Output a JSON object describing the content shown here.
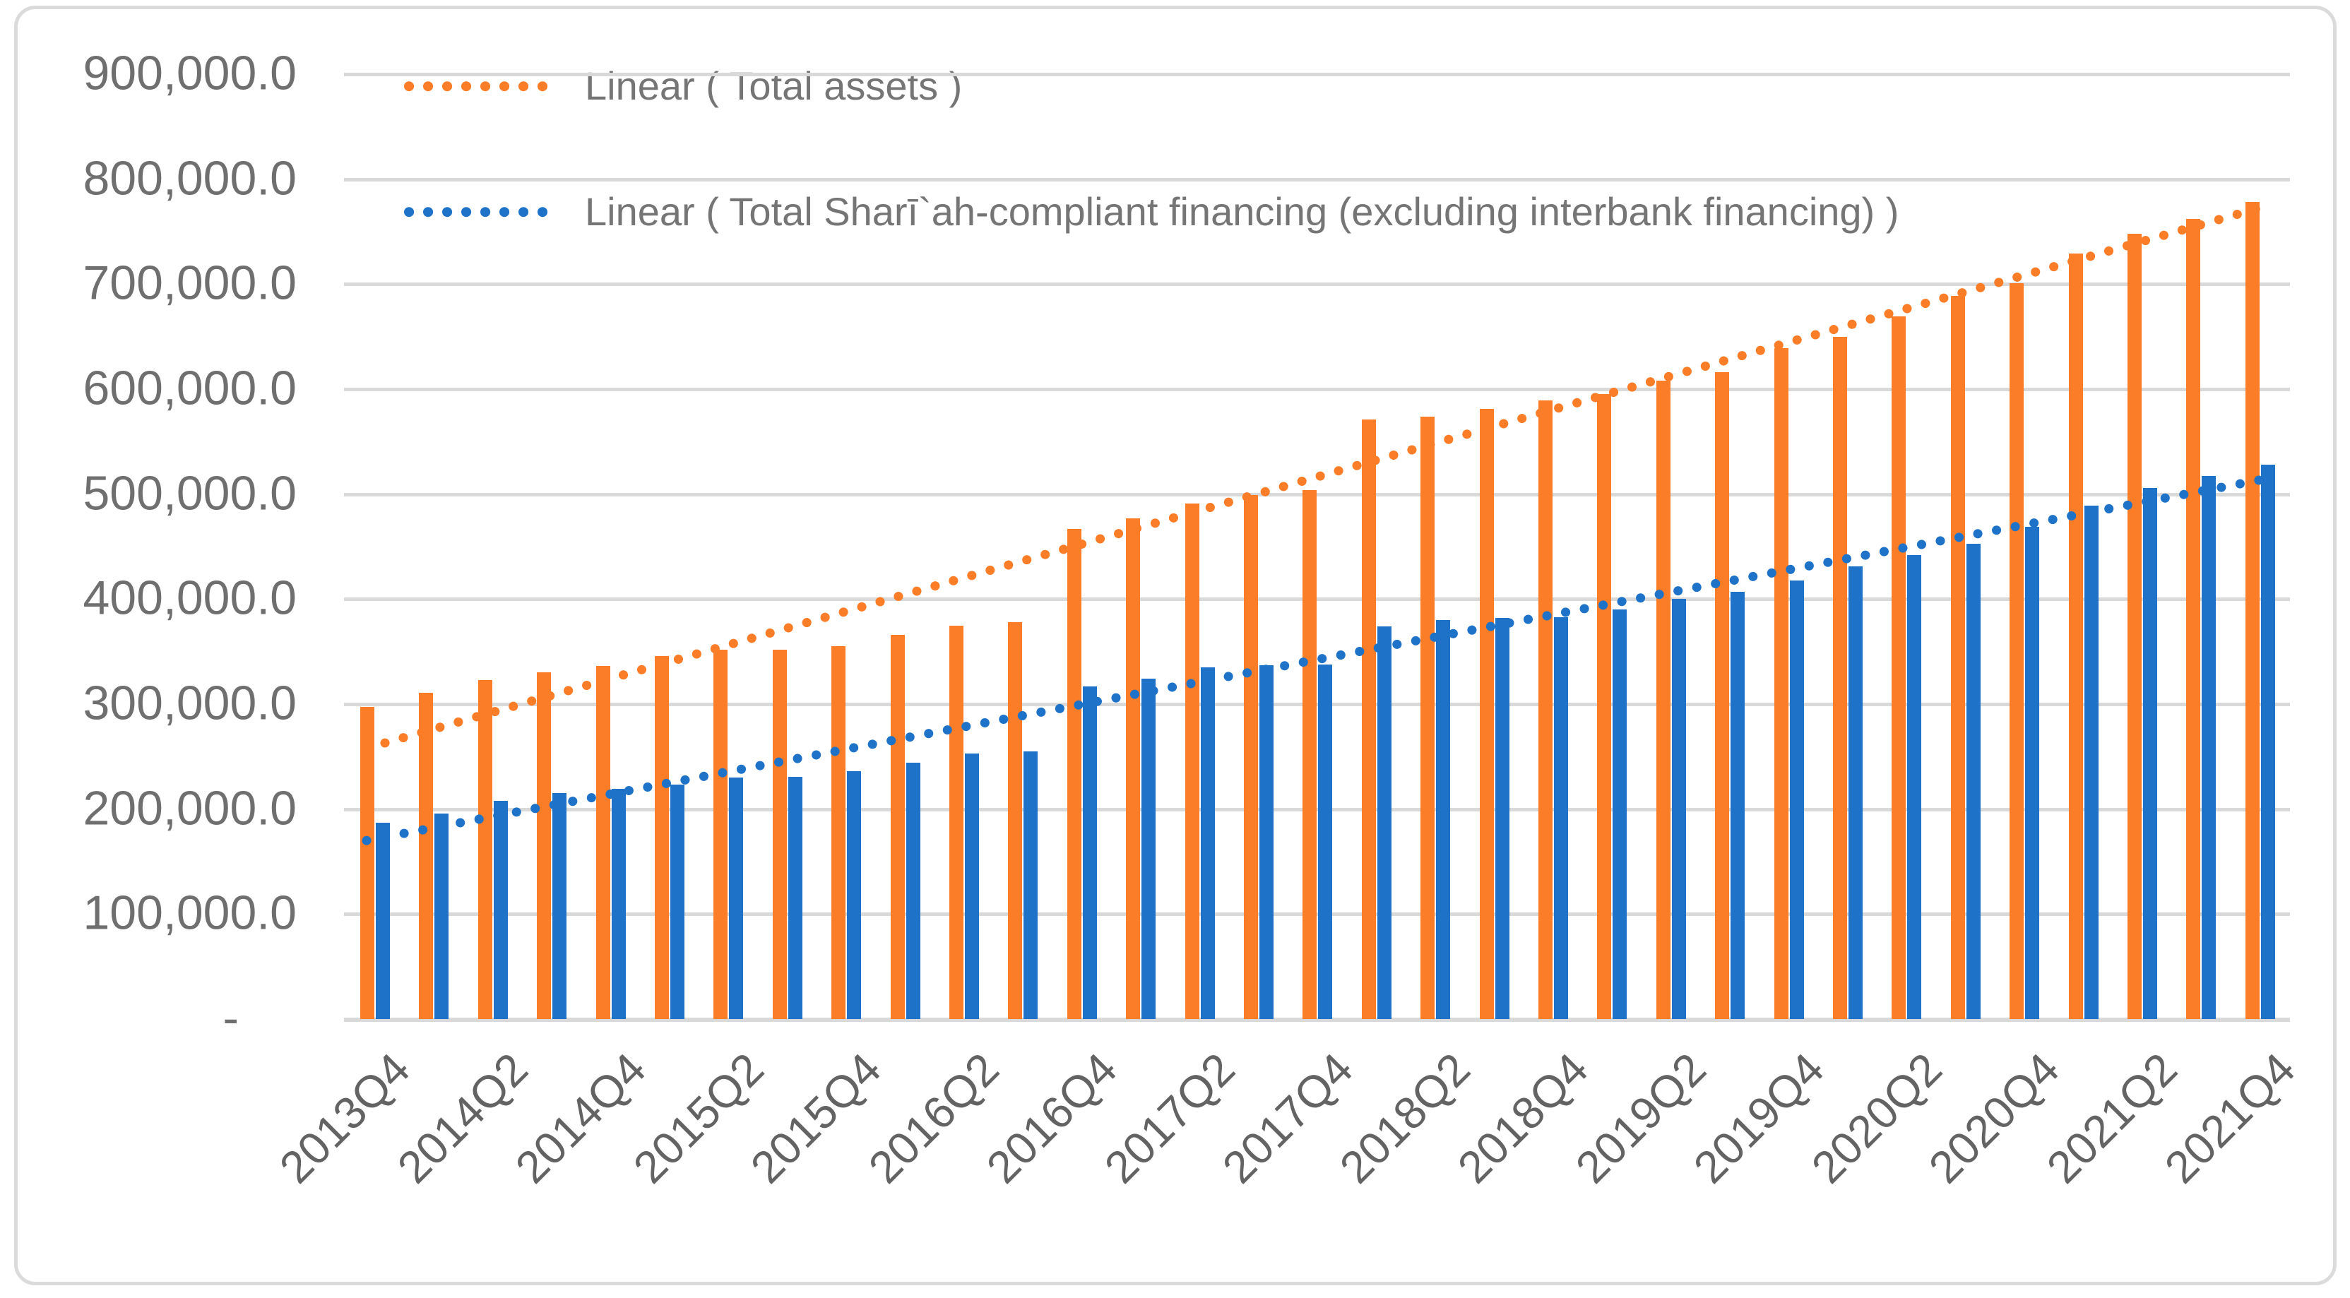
{
  "legend": {
    "item1": "Linear ( Total assets )",
    "item2": "Linear ( Total Sharī`ah-compliant financing (excluding interbank financing) )"
  },
  "chart_data": {
    "type": "bar",
    "title": "",
    "grid": "horizontal",
    "legend_position": "top-left",
    "categories": [
      "2013Q4",
      "2014Q1",
      "2014Q2",
      "2014Q3",
      "2014Q4",
      "2015Q1",
      "2015Q2",
      "2015Q3",
      "2015Q4",
      "2016Q1",
      "2016Q2",
      "2016Q3",
      "2016Q4",
      "2017Q1",
      "2017Q2",
      "2017Q3",
      "2017Q4",
      "2018Q1",
      "2018Q2",
      "2018Q3",
      "2018Q4",
      "2019Q1",
      "2019Q2",
      "2019Q3",
      "2019Q4",
      "2020Q1",
      "2020Q2",
      "2020Q3",
      "2020Q4",
      "2021Q1",
      "2021Q2",
      "2021Q3",
      "2021Q4"
    ],
    "x_tick_labels": [
      "2013Q4",
      "2014Q2",
      "2014Q4",
      "2015Q2",
      "2015Q4",
      "2016Q2",
      "2016Q4",
      "2017Q2",
      "2017Q4",
      "2018Q2",
      "2018Q4",
      "2019Q2",
      "2019Q4",
      "2020Q2",
      "2020Q4",
      "2021Q2",
      "2021Q4"
    ],
    "x_label_every": 2,
    "series": [
      {
        "name": "Total assets",
        "color": "#FB7D27",
        "values": [
          297000,
          311000,
          323000,
          330000,
          336000,
          346000,
          352000,
          352000,
          355000,
          366000,
          375000,
          378000,
          467000,
          477000,
          491000,
          499000,
          504000,
          571000,
          574000,
          581000,
          589000,
          595000,
          608000,
          616000,
          639000,
          650000,
          669000,
          689000,
          701000,
          729000,
          748000,
          762000,
          778000
        ]
      },
      {
        "name": "Total Sharī`ah-compliant financing (excluding interbank financing)",
        "color": "#1E73C8",
        "values": [
          187000,
          196000,
          208000,
          215000,
          219000,
          223000,
          230000,
          231000,
          236000,
          244000,
          253000,
          255000,
          317000,
          324000,
          335000,
          337000,
          338000,
          374000,
          380000,
          382000,
          383000,
          390000,
          400000,
          407000,
          418000,
          431000,
          442000,
          453000,
          469000,
          489000,
          506000,
          517000,
          528000
        ]
      }
    ],
    "trendlines": [
      {
        "label": "Linear ( Total assets )",
        "series": "Total assets",
        "color": "#FB7D27",
        "style": "dotted",
        "start_value": 258000,
        "end_value": 775000
      },
      {
        "label": "Linear ( Total Sharī`ah-compliant financing (excluding interbank financing) )",
        "series": "Total Sharī`ah-compliant financing (excluding interbank financing)",
        "color": "#1E73C8",
        "style": "dotted",
        "start_value": 170000,
        "end_value": 515000
      }
    ],
    "y_axis": {
      "min": 0,
      "max": 900000,
      "tick_interval": 100000,
      "tick_labels": [
        "900,000.0",
        "800,000.0",
        "700,000.0",
        "600,000.0",
        "500,000.0",
        "400,000.0",
        "300,000.0",
        "200,000.0",
        "100,000.0",
        "-"
      ]
    },
    "colors": {
      "gridline": "#D9D9D9",
      "axis_text": "#6F6F6F",
      "legend_text": "#757575",
      "frame_border": "#DBDBDB",
      "background": "#FFFFFF"
    }
  }
}
